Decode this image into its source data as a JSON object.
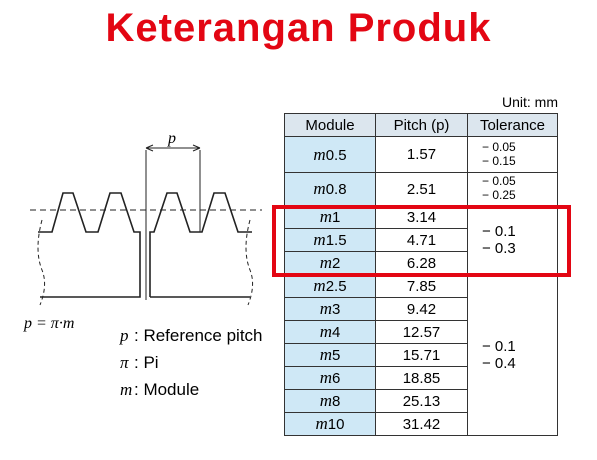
{
  "header": {
    "title": "Keterangan Produk"
  },
  "diagram": {
    "pitch_label": "p",
    "formula": "p = π·m",
    "legend": [
      {
        "symbol": "p",
        "text": ": Reference pitch"
      },
      {
        "symbol": "π",
        "text": ": Pi"
      },
      {
        "symbol": "m",
        "text": ": Module"
      }
    ]
  },
  "table": {
    "unit": "Unit: mm",
    "columns": [
      "Module",
      "Pitch (p)",
      "Tolerance"
    ],
    "groups": [
      {
        "tolerance": [
          "− 0.05",
          "− 0.15"
        ],
        "rows": [
          {
            "symbol": "m",
            "size": "0.5",
            "pitch": "1.57"
          }
        ]
      },
      {
        "tolerance": [
          "− 0.05",
          "− 0.25"
        ],
        "rows": [
          {
            "symbol": "m",
            "size": "0.8",
            "pitch": "2.51"
          }
        ]
      },
      {
        "tolerance": [
          "− 0.1",
          "− 0.3"
        ],
        "rows": [
          {
            "symbol": "m",
            "size": "1",
            "pitch": "3.14"
          },
          {
            "symbol": "m",
            "size": "1.5",
            "pitch": "4.71"
          },
          {
            "symbol": "m",
            "size": "2",
            "pitch": "6.28"
          }
        ]
      },
      {
        "tolerance": [
          "− 0.1",
          "− 0.4"
        ],
        "rows": [
          {
            "symbol": "m",
            "size": "2.5",
            "pitch": "7.85"
          },
          {
            "symbol": "m",
            "size": "3",
            "pitch": "9.42"
          },
          {
            "symbol": "m",
            "size": "4",
            "pitch": "12.57"
          },
          {
            "symbol": "m",
            "size": "5",
            "pitch": "15.71"
          },
          {
            "symbol": "m",
            "size": "6",
            "pitch": "18.85"
          },
          {
            "symbol": "m",
            "size": "8",
            "pitch": "25.13"
          },
          {
            "symbol": "m",
            "size": "10",
            "pitch": "31.42"
          }
        ]
      }
    ]
  }
}
